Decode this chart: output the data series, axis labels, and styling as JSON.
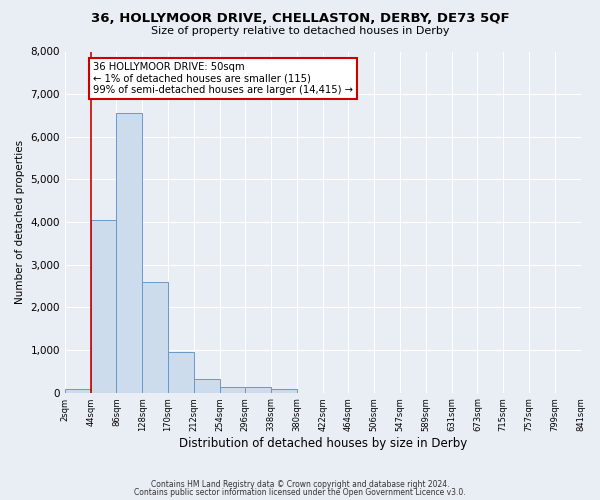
{
  "title": "36, HOLLYMOOR DRIVE, CHELLASTON, DERBY, DE73 5QF",
  "subtitle": "Size of property relative to detached houses in Derby",
  "xlabel": "Distribution of detached houses by size in Derby",
  "ylabel": "Number of detached properties",
  "bin_labels": [
    "2sqm",
    "44sqm",
    "86sqm",
    "128sqm",
    "170sqm",
    "212sqm",
    "254sqm",
    "296sqm",
    "338sqm",
    "380sqm",
    "422sqm",
    "464sqm",
    "506sqm",
    "547sqm",
    "589sqm",
    "631sqm",
    "673sqm",
    "715sqm",
    "757sqm",
    "799sqm",
    "841sqm"
  ],
  "bar_values": [
    75,
    4050,
    6550,
    2600,
    960,
    320,
    130,
    120,
    95,
    0,
    0,
    0,
    0,
    0,
    0,
    0,
    0,
    0,
    0,
    0
  ],
  "bar_color": "#ccdcec",
  "bar_edge_color": "#6699cc",
  "property_line_x": 1,
  "annotation_line1": "36 HOLLYMOOR DRIVE: 50sqm",
  "annotation_line2": "← 1% of detached houses are smaller (115)",
  "annotation_line3": "99% of semi-detached houses are larger (14,415) →",
  "annotation_box_color": "#ffffff",
  "annotation_box_edge_color": "#cc0000",
  "red_line_color": "#cc0000",
  "ylim": [
    0,
    8000
  ],
  "yticks": [
    0,
    1000,
    2000,
    3000,
    4000,
    5000,
    6000,
    7000,
    8000
  ],
  "footer1": "Contains HM Land Registry data © Crown copyright and database right 2024.",
  "footer2": "Contains public sector information licensed under the Open Government Licence v3.0.",
  "bg_color": "#e8eef4",
  "plot_bg_color": "#e8eef4",
  "grid_color": "#ffffff"
}
